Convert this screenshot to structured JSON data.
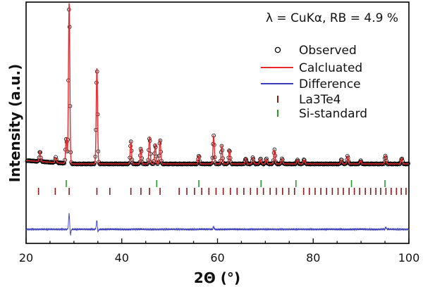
{
  "chart_data": {
    "type": "scatter",
    "title": "",
    "xlabel": "2Θ (°)",
    "ylabel": "Intensity (a.u.)",
    "xlim": [
      20,
      100
    ],
    "x_ticks": [
      "20",
      "40",
      "60",
      "80",
      "100"
    ],
    "annotation": "λ = CuKα, RB = 4.9 %",
    "legend_position": "top-right",
    "legend": [
      {
        "label": "Observed",
        "marker": "open-circle",
        "color": "#000000"
      },
      {
        "label": "Calcluated",
        "marker": "line",
        "color": "#e8282b"
      },
      {
        "label": "Difference",
        "marker": "line",
        "color": "#3b3fb5"
      },
      {
        "label": "La3Te4",
        "marker": "bar",
        "color": "#8b1a1a"
      },
      {
        "label": "Si-standard",
        "marker": "bar",
        "color": "#22a02a"
      }
    ],
    "peaks": [
      {
        "x": 22.9,
        "h": 0.035
      },
      {
        "x": 26.2,
        "h": 0.018
      },
      {
        "x": 28.4,
        "h": 0.09
      },
      {
        "x": 29.0,
        "h": 0.57
      },
      {
        "x": 34.8,
        "h": 0.34
      },
      {
        "x": 41.9,
        "h": 0.08
      },
      {
        "x": 44.0,
        "h": 0.055
      },
      {
        "x": 45.8,
        "h": 0.095
      },
      {
        "x": 47.0,
        "h": 0.07
      },
      {
        "x": 48.0,
        "h": 0.085
      },
      {
        "x": 56.1,
        "h": 0.03
      },
      {
        "x": 59.2,
        "h": 0.1
      },
      {
        "x": 60.9,
        "h": 0.065
      },
      {
        "x": 62.5,
        "h": 0.05
      },
      {
        "x": 65.9,
        "h": 0.02
      },
      {
        "x": 67.4,
        "h": 0.022
      },
      {
        "x": 69.0,
        "h": 0.018
      },
      {
        "x": 70.2,
        "h": 0.018
      },
      {
        "x": 71.9,
        "h": 0.05
      },
      {
        "x": 73.5,
        "h": 0.018
      },
      {
        "x": 76.7,
        "h": 0.015
      },
      {
        "x": 78.1,
        "h": 0.015
      },
      {
        "x": 85.9,
        "h": 0.015
      },
      {
        "x": 87.2,
        "h": 0.028
      },
      {
        "x": 89.9,
        "h": 0.012
      },
      {
        "x": 95.1,
        "h": 0.03
      },
      {
        "x": 98.5,
        "h": 0.02
      }
    ],
    "La3Te4_positions": [
      22.6,
      26.1,
      29.0,
      34.8,
      37.5,
      41.9,
      44.0,
      45.8,
      48.0,
      52.0,
      53.6,
      55.2,
      56.7,
      58.2,
      59.7,
      61.2,
      62.7,
      64.1,
      65.5,
      66.9,
      68.3,
      69.6,
      71.0,
      72.3,
      73.6,
      74.9,
      76.1,
      78.0,
      79.2,
      80.4,
      81.6,
      82.8,
      84.0,
      85.2,
      86.3,
      87.5,
      88.6,
      89.7,
      90.9,
      92.0,
      93.1,
      94.1,
      95.2,
      96.3,
      97.4,
      98.4,
      99.4
    ],
    "Si_positions": [
      28.4,
      47.3,
      56.1,
      69.1,
      76.4,
      88.0,
      95.0
    ]
  }
}
